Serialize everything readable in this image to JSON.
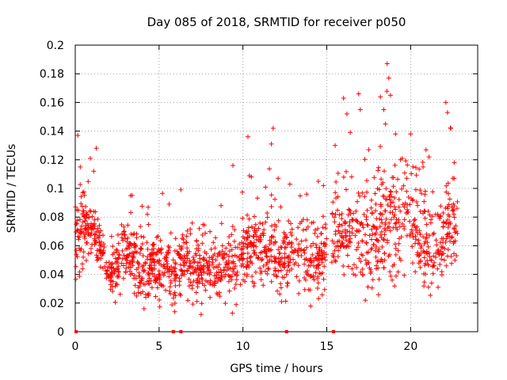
{
  "chart_data": {
    "type": "scatter",
    "title": "Day 085 of 2018, SRMTID for receiver p050",
    "xlabel": "GPS time / hours",
    "ylabel": "SRMTID / TECUs",
    "xlim": [
      0,
      24
    ],
    "ylim": [
      0,
      0.2
    ],
    "xticks": [
      0,
      5,
      10,
      15,
      20
    ],
    "yticks": [
      0,
      0.02,
      0.04,
      0.06,
      0.08,
      0.1,
      0.12,
      0.14,
      0.16,
      0.18,
      0.2
    ],
    "xtick_labels": [
      "0",
      "5",
      "10",
      "15",
      "20"
    ],
    "ytick_labels": [
      "0",
      "0.02",
      "0.04",
      "0.06",
      "0.08",
      "0.1",
      "0.12",
      "0.14",
      "0.16",
      "0.18",
      "0.2"
    ],
    "grid": true,
    "marker": "+",
    "color": "#ff0000",
    "zero_flags_x": [
      0.05,
      5.85,
      6.3,
      12.6,
      15.4
    ],
    "trend": [
      [
        0,
        0.06
      ],
      [
        0.5,
        0.07
      ],
      [
        1.0,
        0.072
      ],
      [
        1.5,
        0.06
      ],
      [
        2.0,
        0.037
      ],
      [
        2.5,
        0.048
      ],
      [
        3.0,
        0.058
      ],
      [
        3.5,
        0.055
      ],
      [
        4.0,
        0.045
      ],
      [
        4.5,
        0.043
      ],
      [
        5.0,
        0.045
      ],
      [
        5.5,
        0.047
      ],
      [
        6.0,
        0.04
      ],
      [
        6.5,
        0.052
      ],
      [
        7.0,
        0.047
      ],
      [
        7.5,
        0.042
      ],
      [
        8.0,
        0.045
      ],
      [
        8.5,
        0.043
      ],
      [
        9.0,
        0.046
      ],
      [
        9.5,
        0.05
      ],
      [
        10.0,
        0.052
      ],
      [
        10.5,
        0.058
      ],
      [
        11.0,
        0.055
      ],
      [
        11.5,
        0.058
      ],
      [
        12.0,
        0.052
      ],
      [
        12.5,
        0.05
      ],
      [
        13.0,
        0.055
      ],
      [
        13.5,
        0.054
      ],
      [
        14.0,
        0.05
      ],
      [
        14.5,
        0.05
      ],
      [
        15.0,
        0.052
      ],
      [
        15.5,
        0.075
      ],
      [
        16.0,
        0.068
      ],
      [
        16.5,
        0.072
      ],
      [
        17.0,
        0.07
      ],
      [
        17.5,
        0.065
      ],
      [
        18.0,
        0.07
      ],
      [
        18.5,
        0.077
      ],
      [
        19.0,
        0.072
      ],
      [
        19.5,
        0.075
      ],
      [
        20.0,
        0.08
      ],
      [
        20.5,
        0.07
      ],
      [
        21.0,
        0.055
      ],
      [
        21.5,
        0.058
      ],
      [
        22.0,
        0.068
      ],
      [
        22.5,
        0.08
      ],
      [
        22.8,
        0.065
      ]
    ],
    "spread": [
      [
        0,
        0.012
      ],
      [
        2.0,
        0.006
      ],
      [
        2.5,
        0.011
      ],
      [
        15.0,
        0.012
      ],
      [
        15.5,
        0.016
      ],
      [
        18.5,
        0.02
      ],
      [
        20.0,
        0.018
      ],
      [
        22.8,
        0.016
      ]
    ],
    "outliers": [
      [
        0.15,
        0.137
      ],
      [
        0.3,
        0.115
      ],
      [
        0.45,
        0.097
      ],
      [
        0.9,
        0.121
      ],
      [
        1.1,
        0.112
      ],
      [
        1.25,
        0.128
      ],
      [
        3.3,
        0.095
      ],
      [
        4.3,
        0.082
      ],
      [
        5.6,
        0.089
      ],
      [
        6.3,
        0.099
      ],
      [
        8.7,
        0.088
      ],
      [
        9.4,
        0.116
      ],
      [
        10.3,
        0.136
      ],
      [
        10.5,
        0.108
      ],
      [
        11.8,
        0.142
      ],
      [
        11.7,
        0.131
      ],
      [
        12.1,
        0.107
      ],
      [
        12.8,
        0.103
      ],
      [
        13.8,
        0.096
      ],
      [
        14.5,
        0.105
      ],
      [
        14.8,
        0.102
      ],
      [
        15.5,
        0.13
      ],
      [
        16.0,
        0.163
      ],
      [
        16.2,
        0.152
      ],
      [
        16.4,
        0.139
      ],
      [
        16.9,
        0.166
      ],
      [
        17.0,
        0.155
      ],
      [
        17.5,
        0.127
      ],
      [
        18.2,
        0.164
      ],
      [
        18.4,
        0.155
      ],
      [
        18.6,
        0.187
      ],
      [
        18.7,
        0.177
      ],
      [
        18.8,
        0.165
      ],
      [
        18.5,
        0.145
      ],
      [
        19.1,
        0.138
      ],
      [
        19.5,
        0.121
      ],
      [
        20.0,
        0.138
      ],
      [
        21.1,
        0.122
      ],
      [
        22.1,
        0.16
      ],
      [
        22.2,
        0.153
      ],
      [
        22.4,
        0.142
      ],
      [
        22.6,
        0.118
      ],
      [
        17.3,
        0.022
      ],
      [
        7.5,
        0.012
      ],
      [
        4.1,
        0.016
      ],
      [
        12.3,
        0.021
      ]
    ]
  }
}
